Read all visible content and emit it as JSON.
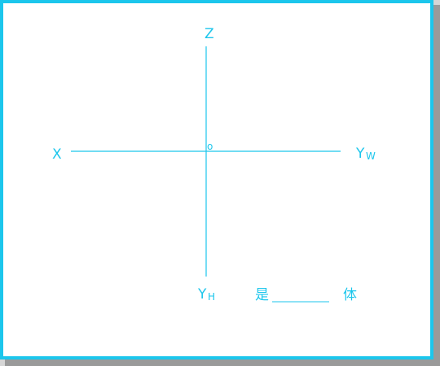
{
  "diagram": {
    "line_color": "#1cc6ec",
    "axis_labels": {
      "z": "Z",
      "x": "X",
      "yw_main": "Y",
      "yw_sub": "W",
      "yh_main": "Y",
      "yh_sub": "H",
      "origin": "o"
    },
    "question": {
      "prefix": "是",
      "suffix": "体"
    }
  }
}
